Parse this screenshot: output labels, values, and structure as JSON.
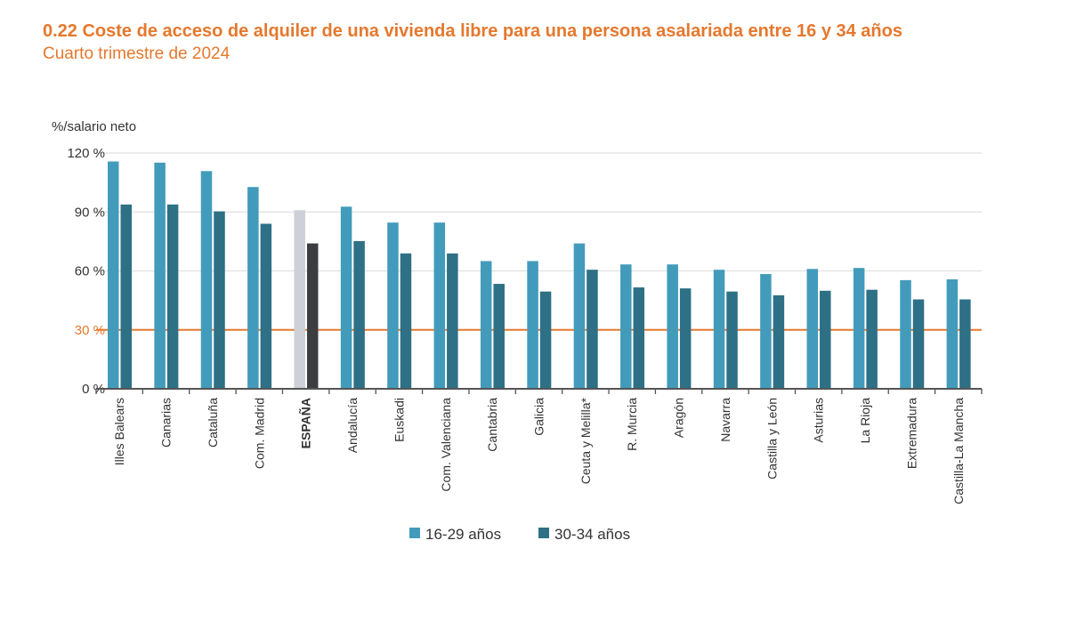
{
  "title": "0.22 Coste de acceso de alquiler de una vivienda libre para una persona asalariada entre 16 y 34 años",
  "subtitle": "Cuarto trimestre de 2024",
  "chart_data": {
    "type": "bar",
    "ylabel": "%/salario neto",
    "ylim": [
      0,
      120
    ],
    "yticks": [
      0,
      30,
      60,
      90,
      120
    ],
    "ytick_labels": [
      "0 %",
      "30 %",
      "60 %",
      "90 %",
      "120 %"
    ],
    "reference_line": {
      "value": 30,
      "color": "#e5782d"
    },
    "grid": true,
    "legend_position": "bottom",
    "categories": [
      "Illes Balears",
      "Canarias",
      "Cataluña",
      "Com. Madrid",
      "ESPAÑA",
      "Andalucía",
      "Euskadi",
      "Com. Valenciana",
      "Cantabria",
      "Galicia",
      "Ceuta y Melilla*",
      "R. Murcia",
      "Aragón",
      "Navarra",
      "Castilla y León",
      "Asturias",
      "La Rioja",
      "Extremadura",
      "Castilla-La Mancha"
    ],
    "highlight_category": "ESPAÑA",
    "series": [
      {
        "name": "16-29 años",
        "color": "#439bbb",
        "highlight_color": "#cdd0d6",
        "values": [
          115.7,
          115.1,
          110.8,
          102.7,
          90.9,
          92.7,
          84.6,
          84.6,
          65.0,
          65.0,
          74.0,
          63.3,
          63.3,
          60.6,
          58.4,
          61.0,
          61.5,
          55.3,
          55.7
        ]
      },
      {
        "name": "30-34 años",
        "color": "#2e7086",
        "highlight_color": "#3b3d40",
        "values": [
          93.8,
          93.8,
          90.3,
          84.0,
          74.0,
          75.2,
          68.9,
          68.9,
          53.4,
          49.5,
          60.6,
          51.6,
          51.1,
          49.5,
          47.6,
          49.9,
          50.4,
          45.5,
          45.5
        ]
      }
    ]
  }
}
